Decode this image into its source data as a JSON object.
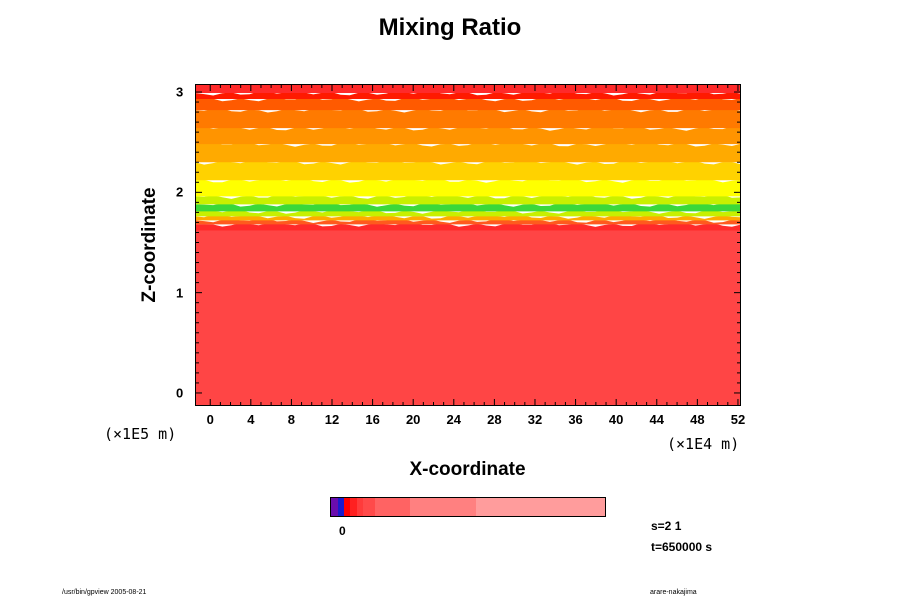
{
  "chart_data": {
    "type": "heatmap",
    "title": "Mixing Ratio",
    "xlabel": "X-coordinate",
    "ylabel": "Z-coordinate",
    "x_unit": "(×1E4 m)",
    "y_unit": "(×1E5 m)",
    "xlim": [
      -1.5,
      52.3
    ],
    "ylim": [
      -0.13,
      3.08
    ],
    "x_ticks": [
      "0",
      "4",
      "8",
      "12",
      "16",
      "20",
      "24",
      "28",
      "32",
      "36",
      "40",
      "44",
      "48",
      "52"
    ],
    "y_ticks": [
      "0",
      "1",
      "2",
      "3"
    ],
    "colorbar_label": "0",
    "colorbar_colors": [
      "#6a0dad",
      "#1a1acc",
      "#ff0000",
      "#ff2020",
      "#ff3b3b",
      "#ff4a4a",
      "#ff6363",
      "#ff8080",
      "#ff9c9c"
    ],
    "bands": [
      {
        "z_bottom": -0.13,
        "z_top": 1.62,
        "color": "#ff4545"
      },
      {
        "z_bottom": 1.62,
        "z_top": 1.68,
        "color": "#ff2a2a"
      },
      {
        "z_bottom": 1.68,
        "z_top": 1.72,
        "color": "#ff5a1e"
      },
      {
        "z_bottom": 1.72,
        "z_top": 1.76,
        "color": "#ffaa00"
      },
      {
        "z_bottom": 1.76,
        "z_top": 1.81,
        "color": "#c8f000"
      },
      {
        "z_bottom": 1.81,
        "z_top": 1.88,
        "color": "#3ad83a"
      },
      {
        "z_bottom": 1.88,
        "z_top": 1.96,
        "color": "#c8f000"
      },
      {
        "z_bottom": 1.96,
        "z_top": 2.12,
        "color": "#ffff00"
      },
      {
        "z_bottom": 2.12,
        "z_top": 2.3,
        "color": "#ffd200"
      },
      {
        "z_bottom": 2.3,
        "z_top": 2.48,
        "color": "#ffaa00"
      },
      {
        "z_bottom": 2.48,
        "z_top": 2.64,
        "color": "#ff9400"
      },
      {
        "z_bottom": 2.64,
        "z_top": 2.82,
        "color": "#ff7a00"
      },
      {
        "z_bottom": 2.82,
        "z_top": 2.93,
        "color": "#ff5a00"
      },
      {
        "z_bottom": 2.93,
        "z_top": 2.99,
        "color": "#ff1a00"
      },
      {
        "z_bottom": 2.99,
        "z_top": 3.08,
        "color": "#ff2a2a"
      }
    ]
  },
  "info": {
    "s_label": "s=2 1",
    "t_label": "t=650000 s"
  },
  "footer": {
    "left": "/usr/bin/gpview 2005-08-21",
    "right": "arare-nakajima"
  }
}
